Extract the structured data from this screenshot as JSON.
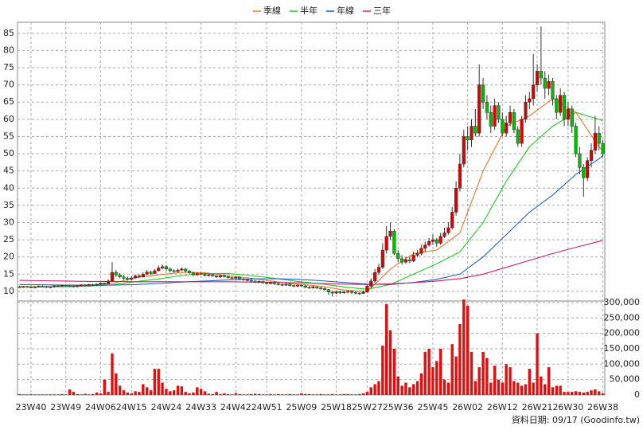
{
  "chart_data": {
    "type": "candlestick",
    "source": "資料日期: 09/17 (Goodinfo.tw)",
    "categories": [
      null,
      null,
      null,
      "23W40",
      null,
      null,
      null,
      null,
      null,
      null,
      null,
      null,
      "23W49",
      null,
      null,
      null,
      null,
      null,
      null,
      null,
      null,
      "24W06",
      null,
      null,
      null,
      null,
      null,
      null,
      null,
      "24W15",
      null,
      null,
      null,
      null,
      null,
      null,
      null,
      null,
      "24W24",
      null,
      null,
      null,
      null,
      null,
      null,
      null,
      null,
      "24W33",
      null,
      null,
      null,
      null,
      null,
      null,
      null,
      null,
      "24W42",
      null,
      null,
      null,
      null,
      null,
      null,
      null,
      "24W51",
      null,
      null,
      null,
      null,
      null,
      null,
      null,
      null,
      "25W09",
      null,
      null,
      null,
      null,
      null,
      null,
      null,
      null,
      "25W18",
      null,
      null,
      null,
      null,
      null,
      null,
      null,
      "25W27",
      null,
      null,
      null,
      null,
      null,
      null,
      null,
      "25W36",
      null,
      null,
      null,
      null,
      null,
      null,
      null,
      null,
      "25W45",
      null,
      null,
      null,
      null,
      null,
      null,
      null,
      null,
      "26W02",
      null,
      null,
      null,
      null,
      null,
      null,
      null,
      null,
      "26W12",
      null,
      null,
      null,
      null,
      null,
      null,
      null,
      null,
      "26W21",
      null,
      null,
      null,
      null,
      null,
      null,
      null,
      "26W30",
      null,
      null,
      null,
      null,
      null,
      null,
      null,
      null,
      "26W38"
    ],
    "open": [
      11.3,
      11.2,
      11.4,
      11.3,
      11.1,
      11.3,
      11.5,
      11.4,
      11.2,
      11.3,
      11.6,
      11.5,
      11.8,
      11.6,
      11.5,
      11.4,
      11.6,
      11.9,
      11.7,
      12.0,
      11.8,
      12.1,
      12.4,
      12.2,
      13.0,
      15.5,
      14.8,
      14.2,
      13.8,
      13.5,
      13.9,
      14.5,
      14.2,
      15.0,
      15.6,
      15.2,
      16.0,
      16.8,
      17.2,
      16.5,
      16.0,
      15.8,
      16.2,
      16.5,
      15.9,
      15.4,
      14.8,
      15.2,
      15.0,
      14.6,
      14.9,
      14.5,
      14.2,
      14.6,
      14.3,
      14.0,
      13.8,
      14.1,
      13.6,
      13.4,
      13.2,
      13.0,
      12.7,
      12.9,
      12.5,
      12.3,
      12.6,
      12.2,
      12.0,
      11.8,
      12.1,
      11.7,
      11.5,
      11.8,
      11.6,
      11.2,
      11.0,
      11.3,
      11.0,
      10.8,
      10.5,
      9.8,
      9.5,
      9.9,
      9.6,
      9.8,
      10.0,
      9.7,
      9.5,
      9.4,
      9.8,
      11.5,
      13.0,
      15.5,
      17.0,
      22.0,
      26.0,
      27.5,
      21.0,
      19.5,
      18.5,
      19.2,
      18.8,
      20.5,
      21.0,
      22.5,
      23.5,
      24.5,
      25.0,
      24.0,
      26.0,
      27.0,
      28.5,
      33.0,
      40.0,
      47.0,
      55.0,
      54.0,
      58.0,
      56.0,
      70.0,
      65.0,
      62.0,
      58.0,
      64.0,
      60.0,
      56.0,
      59.0,
      62.0,
      57.0,
      53.0,
      60.0,
      65.0,
      66.0,
      70.0,
      74.0,
      72.0,
      69.0,
      71.0,
      66.0,
      62.0,
      67.0,
      60.0,
      63.0,
      58.0,
      50.0,
      46.0,
      43.0,
      48.0,
      51.0,
      56.0,
      53.0
    ],
    "high": [
      11.6,
      11.6,
      11.6,
      11.5,
      11.5,
      11.7,
      11.7,
      11.6,
      11.5,
      11.8,
      11.8,
      12.0,
      12.0,
      11.8,
      11.7,
      11.8,
      12.1,
      12.1,
      12.2,
      12.2,
      12.3,
      12.6,
      12.6,
      13.5,
      18.5,
      16.2,
      15.3,
      14.8,
      14.3,
      14.4,
      14.9,
      15.0,
      15.5,
      16.2,
      16.0,
      16.5,
      17.5,
      17.8,
      17.6,
      16.9,
      16.4,
      16.6,
      17.0,
      16.8,
      16.2,
      15.7,
      15.6,
      15.5,
      15.3,
      15.2,
      15.1,
      14.8,
      14.9,
      14.9,
      14.6,
      14.3,
      14.4,
      14.4,
      13.9,
      13.7,
      13.5,
      13.2,
      13.2,
      13.1,
      12.8,
      12.9,
      12.9,
      12.5,
      12.3,
      12.4,
      12.4,
      12.0,
      12.1,
      12.0,
      11.8,
      11.5,
      11.6,
      11.5,
      11.4,
      11.1,
      10.7,
      10.1,
      10.2,
      10.2,
      10.1,
      10.3,
      10.3,
      10.0,
      9.8,
      10.1,
      12.0,
      13.8,
      16.5,
      18.0,
      24.0,
      29.0,
      30.0,
      28.0,
      22.0,
      20.5,
      20.0,
      20.0,
      21.5,
      22.0,
      23.5,
      24.5,
      25.5,
      26.5,
      25.5,
      27.0,
      28.5,
      30.0,
      34.5,
      42.0,
      50.0,
      57.0,
      58.0,
      60.0,
      63.0,
      76.0,
      72.0,
      67.0,
      64.0,
      66.0,
      65.0,
      62.0,
      61.0,
      64.0,
      63.0,
      58.0,
      61.0,
      67.0,
      68.0,
      79.0,
      76.0,
      87.0,
      74.0,
      73.0,
      72.0,
      67.0,
      69.0,
      68.0,
      65.0,
      64.0,
      59.0,
      52.0,
      47.0,
      49.0,
      53.0,
      61.0,
      58.0,
      54.0
    ],
    "low": [
      11.0,
      11.0,
      11.1,
      10.9,
      10.9,
      11.1,
      11.2,
      11.0,
      11.0,
      11.1,
      11.3,
      11.3,
      11.4,
      11.3,
      11.2,
      11.2,
      11.4,
      11.5,
      11.5,
      11.6,
      11.6,
      11.9,
      12.0,
      12.0,
      12.8,
      14.2,
      13.8,
      13.4,
      13.1,
      13.2,
      13.6,
      13.9,
      14.0,
      14.7,
      14.8,
      15.0,
      15.8,
      16.4,
      16.0,
      15.6,
      15.4,
      15.5,
      15.9,
      15.6,
      15.1,
      14.4,
      14.5,
      14.7,
      14.3,
      14.3,
      14.2,
      13.9,
      13.9,
      14.0,
      13.7,
      13.5,
      13.5,
      13.3,
      13.1,
      12.9,
      12.7,
      12.4,
      12.4,
      12.2,
      12.0,
      12.0,
      11.9,
      11.7,
      11.5,
      11.6,
      11.4,
      11.2,
      11.2,
      11.3,
      10.9,
      10.7,
      10.8,
      10.7,
      10.5,
      10.2,
      9.0,
      8.5,
      9.2,
      9.2,
      9.3,
      9.4,
      9.3,
      9.1,
      9.0,
      9.2,
      9.6,
      11.0,
      12.5,
      14.8,
      16.5,
      21.0,
      25.0,
      20.5,
      18.5,
      17.8,
      18.0,
      18.2,
      18.5,
      20.0,
      20.5,
      21.5,
      23.0,
      23.5,
      23.0,
      23.5,
      25.5,
      26.5,
      28.0,
      32.0,
      39.0,
      46.0,
      51.0,
      52.0,
      55.0,
      55.0,
      63.0,
      60.0,
      56.0,
      57.0,
      59.0,
      55.0,
      55.0,
      58.0,
      56.0,
      52.0,
      52.0,
      59.0,
      63.0,
      64.0,
      68.0,
      70.0,
      66.0,
      67.0,
      64.0,
      60.0,
      61.0,
      58.0,
      58.0,
      56.0,
      49.0,
      44.0,
      37.5,
      42.0,
      46.0,
      50.0,
      51.0,
      49.0
    ],
    "close": [
      11.2,
      11.4,
      11.3,
      11.1,
      11.3,
      11.5,
      11.4,
      11.2,
      11.3,
      11.6,
      11.5,
      11.8,
      11.6,
      11.5,
      11.4,
      11.6,
      11.9,
      11.7,
      12.0,
      11.8,
      12.1,
      12.4,
      12.2,
      13.0,
      15.5,
      14.8,
      14.2,
      13.8,
      13.5,
      13.9,
      14.5,
      14.2,
      15.0,
      15.6,
      15.2,
      16.0,
      16.8,
      17.2,
      16.5,
      16.0,
      15.8,
      16.2,
      16.5,
      15.9,
      15.4,
      14.8,
      15.2,
      15.0,
      14.6,
      14.9,
      14.5,
      14.2,
      14.6,
      14.3,
      14.0,
      13.8,
      14.1,
      13.6,
      13.4,
      13.2,
      13.0,
      12.7,
      12.9,
      12.5,
      12.3,
      12.6,
      12.2,
      12.0,
      11.8,
      12.1,
      11.7,
      11.5,
      11.8,
      11.6,
      11.2,
      11.0,
      11.3,
      11.0,
      10.8,
      10.5,
      9.8,
      9.5,
      9.9,
      9.6,
      9.8,
      10.0,
      9.7,
      9.5,
      9.4,
      9.8,
      11.5,
      13.0,
      15.5,
      17.0,
      22.0,
      26.0,
      27.5,
      21.0,
      19.5,
      18.5,
      19.2,
      18.8,
      20.5,
      21.0,
      22.5,
      23.5,
      24.5,
      25.0,
      24.0,
      26.0,
      27.0,
      28.5,
      33.0,
      40.0,
      47.0,
      55.0,
      54.0,
      58.0,
      56.0,
      70.0,
      65.0,
      62.0,
      58.0,
      64.0,
      60.0,
      56.0,
      59.0,
      62.0,
      57.0,
      53.0,
      60.0,
      65.0,
      66.0,
      70.0,
      74.0,
      72.0,
      69.0,
      71.0,
      66.0,
      62.0,
      67.0,
      60.0,
      63.0,
      58.0,
      50.0,
      46.0,
      43.0,
      48.0,
      51.0,
      56.0,
      53.0,
      50.0
    ],
    "up_color": "#e00000",
    "down_color": "#00c000",
    "ylim": [
      7.2,
      88.2
    ],
    "yticks": [
      10,
      15,
      20,
      25,
      30,
      35,
      40,
      45,
      50,
      55,
      60,
      65,
      70,
      75,
      80,
      85
    ],
    "grid": true,
    "lines": {
      "x": [
        0,
        6,
        12,
        18,
        24,
        30,
        36,
        42,
        48,
        54,
        60,
        66,
        72,
        78,
        84,
        90,
        96,
        102,
        108,
        114,
        120,
        126,
        132,
        138,
        144,
        150,
        151
      ],
      "series": [
        {
          "name": "季線",
          "color": "#e8782a",
          "values": [
            11.3,
            11.3,
            11.5,
            11.7,
            12.3,
            14.0,
            14.8,
            15.5,
            15.4,
            14.6,
            13.8,
            12.9,
            12.1,
            11.5,
            10.4,
            9.9,
            16.5,
            21.0,
            22.0,
            27.0,
            45.0,
            58.0,
            61.0,
            66.0,
            62.0,
            52.0,
            51.0
          ]
        },
        {
          "name": "半年",
          "color": "#22cc22",
          "values": [
            11.4,
            11.3,
            11.4,
            11.5,
            11.9,
            12.8,
            13.6,
            14.6,
            15.2,
            15.2,
            14.6,
            13.8,
            12.9,
            12.2,
            11.3,
            10.6,
            12.0,
            15.0,
            18.0,
            21.5,
            30.0,
            42.0,
            52.0,
            58.0,
            62.0,
            60.0,
            59.5
          ]
        },
        {
          "name": "年線",
          "color": "#1f5fcc",
          "values": [
            12.0,
            11.9,
            11.8,
            11.8,
            11.8,
            12.0,
            12.3,
            12.7,
            13.0,
            13.3,
            13.6,
            13.7,
            13.5,
            13.1,
            12.6,
            12.1,
            12.0,
            12.6,
            13.5,
            15.0,
            20.0,
            26.5,
            33.0,
            38.0,
            44.0,
            48.5,
            49.5
          ]
        },
        {
          "name": "三年",
          "color": "#d0206a",
          "values": [
            13.2,
            13.1,
            13.0,
            12.9,
            12.9,
            12.8,
            12.8,
            12.8,
            12.8,
            12.8,
            12.7,
            12.6,
            12.5,
            12.3,
            12.1,
            12.0,
            12.2,
            12.5,
            13.0,
            13.7,
            15.0,
            17.0,
            19.0,
            21.0,
            22.8,
            24.5,
            24.8
          ]
        }
      ]
    },
    "volume": {
      "color": "#e01010",
      "ylim": [
        0,
        305000
      ],
      "yticks": [
        {
          "value": 300000,
          "label": "300,000"
        },
        {
          "value": 250000,
          "label": "250,000"
        },
        {
          "value": 200000,
          "label": "200,000"
        },
        {
          "value": 150000,
          "label": "150,000"
        },
        {
          "value": 100000,
          "label": "100,000"
        },
        {
          "value": 50000,
          "label": "50,000"
        },
        0
      ],
      "values": [
        3000,
        2000,
        2000,
        3000,
        2000,
        2000,
        2000,
        2000,
        2000,
        2000,
        2000,
        3000,
        2000,
        18000,
        10000,
        3000,
        2000,
        4000,
        2000,
        3000,
        8000,
        5000,
        50000,
        10000,
        135000,
        70000,
        30000,
        15000,
        8000,
        5000,
        12000,
        10000,
        35000,
        25000,
        15000,
        85000,
        85000,
        40000,
        20000,
        12000,
        15000,
        30000,
        28000,
        10000,
        5000,
        8000,
        25000,
        20000,
        12000,
        4000,
        3000,
        10000,
        3000,
        5000,
        3000,
        2000,
        6000,
        3000,
        2000,
        2000,
        3000,
        4000,
        3000,
        2000,
        2000,
        3000,
        2000,
        3000,
        2000,
        2000,
        3000,
        2000,
        2000,
        5000,
        3000,
        3000,
        2000,
        2000,
        3000,
        2000,
        2000,
        3000,
        2000,
        2000,
        3000,
        3000,
        2000,
        2000,
        3000,
        5000,
        10000,
        25000,
        35000,
        45000,
        160000,
        295000,
        210000,
        150000,
        60000,
        30000,
        40000,
        25000,
        35000,
        45000,
        70000,
        140000,
        150000,
        90000,
        110000,
        150000,
        50000,
        40000,
        165000,
        125000,
        230000,
        310000,
        290000,
        140000,
        45000,
        90000,
        140000,
        120000,
        40000,
        95000,
        50000,
        40000,
        100000,
        90000,
        45000,
        40000,
        30000,
        35000,
        85000,
        40000,
        200000,
        60000,
        35000,
        90000,
        25000,
        30000,
        30000,
        10000,
        10000,
        10000,
        12000,
        10000,
        8000,
        10000,
        15000,
        18000,
        12000,
        5000
      ]
    }
  }
}
